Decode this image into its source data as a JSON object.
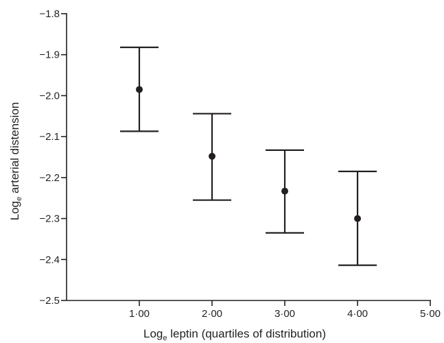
{
  "chart_data": {
    "type": "scatter",
    "title": "",
    "xlabel": {
      "prefix": "Log",
      "subscript": "e",
      "suffix": " leptin (quartiles of distribution)"
    },
    "ylabel": {
      "prefix": "Log",
      "subscript": "e",
      "suffix": " arterial distension"
    },
    "xlim": [
      0,
      5
    ],
    "ylim": [
      -2.5,
      -1.8
    ],
    "xticks": [
      1,
      2,
      3,
      4,
      5
    ],
    "xtick_labels": [
      "1·00",
      "2·00",
      "3·00",
      "4·00",
      "5·00"
    ],
    "yticks": [
      -1.8,
      -1.9,
      -2.0,
      -2.1,
      -2.2,
      -2.3,
      -2.4,
      -2.5
    ],
    "ytick_labels": [
      "−1.8",
      "−1.9",
      "−2.0",
      "−2.1",
      "−2.2",
      "−2.3",
      "−2.4",
      "−2.5"
    ],
    "grid": false,
    "series": [
      {
        "points": [
          {
            "x": 1,
            "y": -1.985,
            "upper": -1.882,
            "lower": -2.087
          },
          {
            "x": 2,
            "y": -2.148,
            "upper": -2.044,
            "lower": -2.255
          },
          {
            "x": 3,
            "y": -2.233,
            "upper": -2.133,
            "lower": -2.335
          },
          {
            "x": 4,
            "y": -2.3,
            "upper": -2.185,
            "lower": -2.414
          }
        ]
      }
    ],
    "colors": {
      "ink": "#231f20",
      "background": "#ffffff"
    }
  }
}
